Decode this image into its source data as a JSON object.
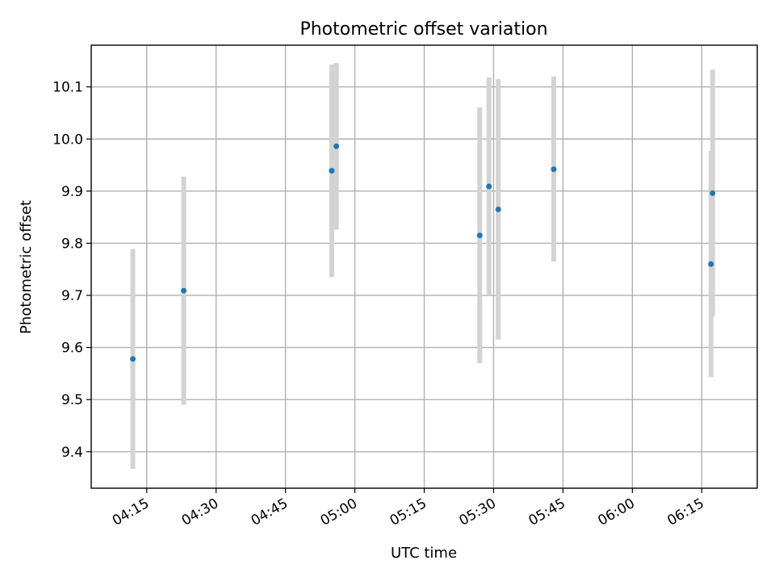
{
  "chart_data": {
    "type": "scatter",
    "title": "Photometric offset variation",
    "xlabel": "UTC time",
    "ylabel": "Photometric offset",
    "xlim": [
      "04:03",
      "06:27"
    ],
    "ylim": [
      9.33,
      10.18
    ],
    "x_ticks": [
      "04:15",
      "04:30",
      "04:45",
      "05:00",
      "05:15",
      "05:30",
      "05:45",
      "06:00",
      "06:15"
    ],
    "y_ticks": [
      "9.4",
      "9.5",
      "9.6",
      "9.7",
      "9.8",
      "9.9",
      "10.0",
      "10.1"
    ],
    "grid": true,
    "points": [
      {
        "x": "04:12",
        "y": 9.578,
        "y_low": 9.367,
        "y_high": 9.789
      },
      {
        "x": "04:23",
        "y": 9.709,
        "y_low": 9.49,
        "y_high": 9.928
      },
      {
        "x": "04:55",
        "y": 9.939,
        "y_low": 9.735,
        "y_high": 10.143
      },
      {
        "x": "04:56",
        "y": 9.986,
        "y_low": 9.826,
        "y_high": 10.146
      },
      {
        "x": "05:27",
        "y": 9.815,
        "y_low": 9.57,
        "y_high": 10.061
      },
      {
        "x": "05:29",
        "y": 9.909,
        "y_low": 9.7,
        "y_high": 10.118
      },
      {
        "x": "05:31",
        "y": 9.865,
        "y_low": 9.615,
        "y_high": 10.115
      },
      {
        "x": "05:43",
        "y": 9.942,
        "y_low": 9.765,
        "y_high": 10.12
      },
      {
        "x": "06:17",
        "y": 9.76,
        "y_low": 9.543,
        "y_high": 9.977
      },
      {
        "x": "06:17",
        "y": 9.896,
        "y_low": 9.66,
        "y_high": 10.133
      }
    ],
    "colors": {
      "point": "#1f77b4",
      "errorbar": "#d3d3d3",
      "grid": "#b0b0b0"
    }
  }
}
